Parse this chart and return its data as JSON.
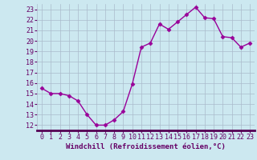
{
  "x": [
    0,
    1,
    2,
    3,
    4,
    5,
    6,
    7,
    8,
    9,
    10,
    11,
    12,
    13,
    14,
    15,
    16,
    17,
    18,
    19,
    20,
    21,
    22,
    23
  ],
  "y": [
    15.5,
    15.0,
    15.0,
    14.8,
    14.3,
    13.0,
    12.0,
    12.0,
    12.5,
    13.3,
    15.9,
    19.4,
    19.8,
    21.6,
    21.1,
    21.8,
    22.5,
    23.2,
    22.2,
    22.1,
    20.4,
    20.3,
    19.4,
    19.8
  ],
  "line_color": "#990099",
  "marker": "D",
  "marker_size": 2.5,
  "bg_color": "#cce8f0",
  "grid_color": "#aabbcc",
  "xlabel": "Windchill (Refroidissement éolien,°C)",
  "xlabel_color": "#660066",
  "tick_color": "#660066",
  "xlim": [
    -0.5,
    23.5
  ],
  "ylim": [
    11.5,
    23.5
  ],
  "yticks": [
    12,
    13,
    14,
    15,
    16,
    17,
    18,
    19,
    20,
    21,
    22,
    23
  ],
  "xticks": [
    0,
    1,
    2,
    3,
    4,
    5,
    6,
    7,
    8,
    9,
    10,
    11,
    12,
    13,
    14,
    15,
    16,
    17,
    18,
    19,
    20,
    21,
    22,
    23
  ],
  "spine_color": "#7788aa",
  "xlabel_fontsize": 6.5,
  "tick_fontsize": 6.0,
  "linewidth": 1.0
}
